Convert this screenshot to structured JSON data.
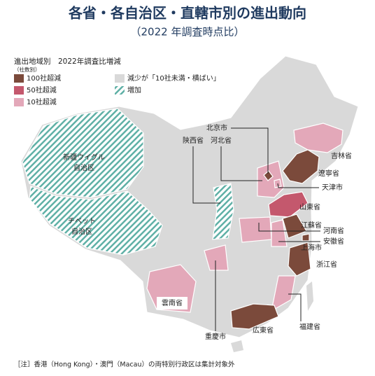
{
  "header": {
    "title": "各省・各自治区・直轄市別の進出動向",
    "subtitle": "（2022 年調査時点比）"
  },
  "legend": {
    "title": "進出地域別　2022年調査比増減",
    "unit": "（社数別）",
    "items": [
      {
        "label": "100社超減",
        "color": "#7b4a3b"
      },
      {
        "label": "50社超減",
        "color": "#c4586d"
      },
      {
        "label": "10社超減",
        "color": "#e3a8b9"
      },
      {
        "label": "減少が「10社未満・横ばい」",
        "color": "#d9d9d9"
      },
      {
        "label": "増加",
        "color": "#5fb0a6",
        "hatch": true
      }
    ]
  },
  "regions": [
    {
      "label": [
        "新疆ウイグル",
        "自治区"
      ],
      "level": 4
    },
    {
      "label": [
        "チベット",
        "自治区"
      ],
      "level": 4
    },
    {
      "label": [
        "陝西省"
      ],
      "level": 4
    },
    {
      "label": [
        "北京市"
      ],
      "level": 0
    },
    {
      "label": [
        "河北省"
      ],
      "level": 2
    },
    {
      "label": [
        "吉林省"
      ],
      "level": 2
    },
    {
      "label": [
        "遼寧省"
      ],
      "level": 0
    },
    {
      "label": [
        "天津市"
      ],
      "level": 2
    },
    {
      "label": [
        "山東省"
      ],
      "level": 1
    },
    {
      "label": [
        "江蘇省"
      ],
      "level": 0
    },
    {
      "label": [
        "河南省"
      ],
      "level": 2
    },
    {
      "label": [
        "安徽省"
      ],
      "level": 2
    },
    {
      "label": [
        "上海市"
      ],
      "level": 0
    },
    {
      "label": [
        "浙江省"
      ],
      "level": 0
    },
    {
      "label": [
        "福建省"
      ],
      "level": 2
    },
    {
      "label": [
        "広東省"
      ],
      "level": 0
    },
    {
      "label": [
        "重慶市"
      ],
      "level": 2
    },
    {
      "label": [
        "雲南省"
      ],
      "level": 2
    }
  ],
  "note": "［注］香港（Hong Kong）・澳門（Macau）の両特別行政区は集計対象外"
}
